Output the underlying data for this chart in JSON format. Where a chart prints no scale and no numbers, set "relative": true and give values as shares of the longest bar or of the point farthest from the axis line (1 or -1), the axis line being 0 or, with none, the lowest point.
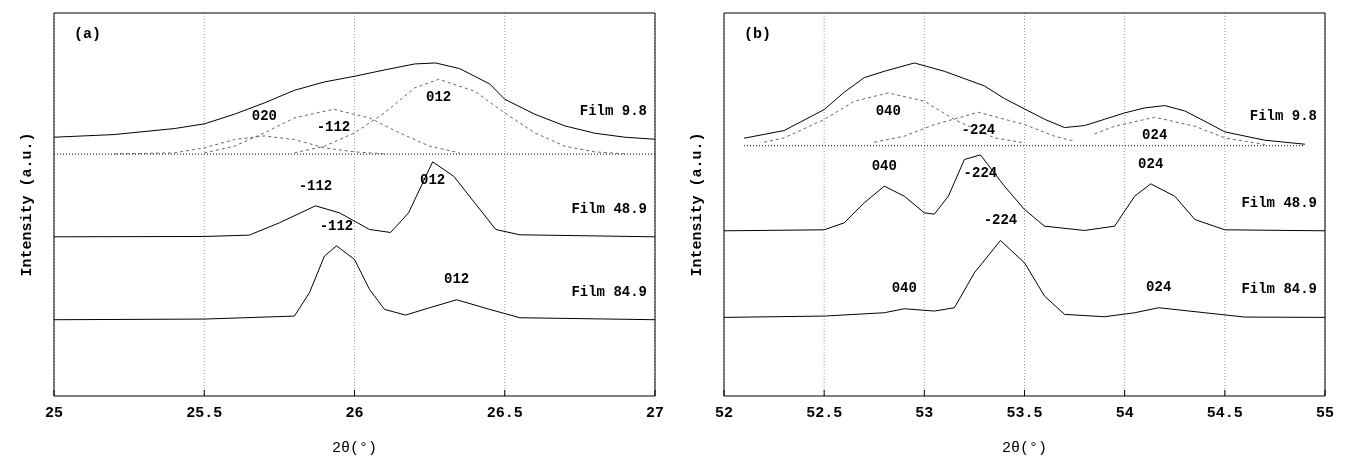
{
  "chart_data": [
    {
      "type": "line",
      "title": "(a)",
      "xlabel": "2θ(°)",
      "ylabel": "Intensity (a.u.)",
      "relative": true,
      "xlim": [
        25,
        27
      ],
      "xticks": [
        25,
        25.5,
        26,
        26.5,
        27
      ],
      "grid": "x",
      "legend": false,
      "marker": "none",
      "series": [
        {
          "name": "Film 9.8",
          "color": "#000000",
          "line_style": "solid",
          "x": [
            25.0,
            25.2,
            25.4,
            25.5,
            25.6,
            25.7,
            25.8,
            25.9,
            26.0,
            26.1,
            26.2,
            26.27,
            26.35,
            26.45,
            26.5,
            26.6,
            26.7,
            26.8,
            26.9,
            27.0
          ],
          "values": [
            0.777,
            0.785,
            0.803,
            0.817,
            0.846,
            0.88,
            0.918,
            0.943,
            0.96,
            0.979,
            0.997,
            1.0,
            0.983,
            0.937,
            0.891,
            0.846,
            0.811,
            0.789,
            0.777,
            0.771
          ]
        },
        {
          "color": "#333333",
          "line_style": "dotted",
          "x": [
            25.0,
            27.0
          ],
          "values": [
            0.726,
            0.726
          ]
        },
        {
          "color": "#666666",
          "line_style": "dashed",
          "x": [
            25.2,
            25.4,
            25.5,
            25.6,
            25.7,
            25.8,
            25.9,
            26.0,
            26.1
          ],
          "values": [
            0.727,
            0.73,
            0.745,
            0.77,
            0.781,
            0.77,
            0.745,
            0.733,
            0.727
          ]
        },
        {
          "color": "#666666",
          "line_style": "dashed",
          "x": [
            25.5,
            25.6,
            25.7,
            25.8,
            25.93,
            26.05,
            26.15,
            26.25,
            26.35
          ],
          "values": [
            0.73,
            0.75,
            0.79,
            0.835,
            0.861,
            0.835,
            0.79,
            0.75,
            0.73
          ]
        },
        {
          "color": "#666666",
          "line_style": "dashed",
          "x": [
            25.8,
            25.9,
            26.0,
            26.1,
            26.2,
            26.28,
            26.4,
            26.5,
            26.6,
            26.7,
            26.8,
            26.9
          ],
          "values": [
            0.73,
            0.75,
            0.79,
            0.85,
            0.925,
            0.951,
            0.915,
            0.85,
            0.79,
            0.75,
            0.733,
            0.727
          ]
        },
        {
          "name": "Film 48.9",
          "color": "#000000",
          "line_style": "solid",
          "x": [
            25.0,
            25.5,
            25.65,
            25.75,
            25.87,
            25.95,
            26.05,
            26.12,
            26.18,
            26.26,
            26.33,
            26.4,
            26.47,
            26.55,
            27.0
          ],
          "values": [
            0.478,
            0.479,
            0.483,
            0.52,
            0.571,
            0.55,
            0.5,
            0.491,
            0.55,
            0.703,
            0.66,
            0.58,
            0.5,
            0.484,
            0.478
          ]
        },
        {
          "name": "Film 84.9",
          "color": "#000000",
          "line_style": "solid",
          "x": [
            25.0,
            25.5,
            25.8,
            25.85,
            25.9,
            25.94,
            26.0,
            26.05,
            26.1,
            26.17,
            26.25,
            26.34,
            26.45,
            26.55,
            27.0
          ],
          "values": [
            0.229,
            0.231,
            0.24,
            0.31,
            0.42,
            0.451,
            0.41,
            0.32,
            0.26,
            0.243,
            0.265,
            0.289,
            0.26,
            0.235,
            0.229
          ]
        }
      ],
      "annotations": [
        {
          "text": "020",
          "x": 25.7,
          "y": 0.781
        },
        {
          "text": "-112",
          "x": 25.93,
          "y": 0.861
        },
        {
          "text": "012",
          "x": 26.28,
          "y": 0.951
        },
        {
          "text": "-112",
          "x": 25.87,
          "y": 0.571
        },
        {
          "text": "012",
          "x": 26.26,
          "y": 0.703
        },
        {
          "text": "-112",
          "x": 25.94,
          "y": 0.451
        },
        {
          "text": "012",
          "x": 26.34,
          "y": 0.289
        }
      ]
    },
    {
      "type": "line",
      "title": "(b)",
      "xlabel": "2θ(°)",
      "ylabel": "Intensity (a.u.)",
      "relative": true,
      "xlim": [
        52,
        55
      ],
      "xticks": [
        52,
        52.5,
        53,
        53.5,
        54,
        54.5,
        55
      ],
      "grid": "x",
      "legend": false,
      "marker": "none",
      "series": [
        {
          "name": "Film 9.8",
          "color": "#000000",
          "line_style": "solid",
          "x": [
            52.1,
            52.3,
            52.5,
            52.6,
            52.7,
            52.8,
            52.95,
            53.1,
            53.3,
            53.4,
            53.5,
            53.6,
            53.7,
            53.8,
            53.9,
            54.0,
            54.1,
            54.2,
            54.3,
            54.4,
            54.5,
            54.7,
            54.9
          ],
          "values": [
            0.774,
            0.797,
            0.86,
            0.912,
            0.956,
            0.975,
            1.0,
            0.975,
            0.931,
            0.893,
            0.862,
            0.831,
            0.806,
            0.812,
            0.831,
            0.85,
            0.865,
            0.872,
            0.856,
            0.825,
            0.793,
            0.768,
            0.756
          ]
        },
        {
          "color": "#333333",
          "line_style": "dotted",
          "x": [
            52.1,
            54.9
          ],
          "values": [
            0.752,
            0.752
          ]
        },
        {
          "color": "#666666",
          "line_style": "dashed",
          "x": [
            52.2,
            52.3,
            52.5,
            52.65,
            52.82,
            53.0,
            53.15,
            53.35,
            53.5
          ],
          "values": [
            0.762,
            0.775,
            0.83,
            0.885,
            0.91,
            0.885,
            0.83,
            0.775,
            0.76
          ]
        },
        {
          "color": "#666666",
          "line_style": "dashed",
          "x": [
            52.75,
            52.9,
            53.05,
            53.27,
            53.5,
            53.65,
            53.75
          ],
          "values": [
            0.762,
            0.78,
            0.815,
            0.852,
            0.815,
            0.78,
            0.765
          ]
        },
        {
          "color": "#666666",
          "line_style": "dashed",
          "x": [
            53.85,
            53.95,
            54.15,
            54.35,
            54.5,
            54.7
          ],
          "values": [
            0.787,
            0.81,
            0.837,
            0.81,
            0.775,
            0.755
          ]
        },
        {
          "name": "Film 48.9",
          "color": "#000000",
          "line_style": "solid",
          "x": [
            52.0,
            52.5,
            52.6,
            52.7,
            52.8,
            52.9,
            53.0,
            53.05,
            53.12,
            53.2,
            53.28,
            53.4,
            53.5,
            53.6,
            53.8,
            53.95,
            54.05,
            54.13,
            54.25,
            54.35,
            54.5,
            55.0
          ],
          "values": [
            0.496,
            0.499,
            0.52,
            0.58,
            0.63,
            0.6,
            0.55,
            0.546,
            0.6,
            0.71,
            0.724,
            0.63,
            0.56,
            0.51,
            0.497,
            0.51,
            0.6,
            0.637,
            0.6,
            0.53,
            0.499,
            0.496
          ]
        },
        {
          "name": "Film 84.9",
          "color": "#000000",
          "line_style": "solid",
          "x": [
            52.0,
            52.5,
            52.8,
            52.9,
            53.05,
            53.15,
            53.25,
            53.38,
            53.5,
            53.6,
            53.7,
            53.9,
            54.05,
            54.17,
            54.4,
            54.6,
            55.0
          ],
          "values": [
            0.236,
            0.24,
            0.25,
            0.262,
            0.255,
            0.265,
            0.37,
            0.467,
            0.4,
            0.3,
            0.245,
            0.238,
            0.25,
            0.265,
            0.25,
            0.237,
            0.236
          ]
        }
      ],
      "annotations": [
        {
          "text": "040",
          "x": 52.82,
          "y": 0.91
        },
        {
          "text": "-224",
          "x": 53.27,
          "y": 0.852
        },
        {
          "text": "024",
          "x": 54.15,
          "y": 0.837
        },
        {
          "text": "040",
          "x": 52.8,
          "y": 0.63
        },
        {
          "text": "-224",
          "x": 53.28,
          "y": 0.724
        },
        {
          "text": "024",
          "x": 54.13,
          "y": 0.637
        },
        {
          "text": "040",
          "x": 52.9,
          "y": 0.262
        },
        {
          "text": "-224",
          "x": 53.38,
          "y": 0.467
        },
        {
          "text": "024",
          "x": 54.17,
          "y": 0.265
        }
      ]
    }
  ]
}
